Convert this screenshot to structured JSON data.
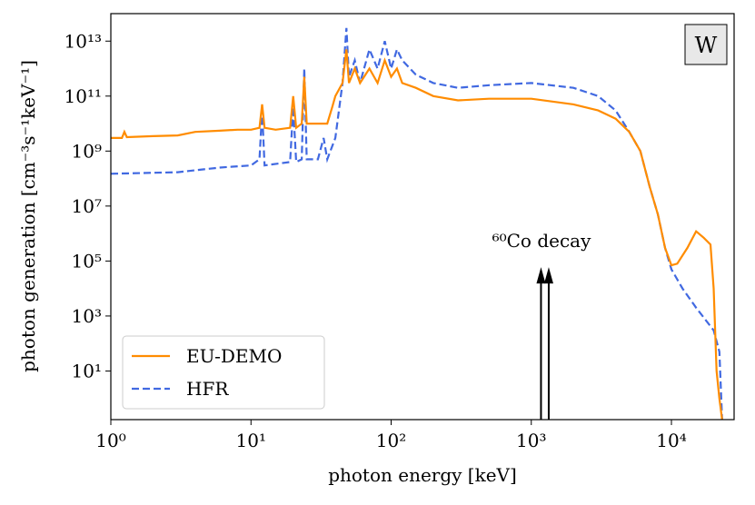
{
  "chart_data": {
    "type": "line",
    "xlabel": "photon energy [keV]",
    "ylabel": "photon generation [cm⁻³s⁻¹keV⁻¹]",
    "xscale": "log",
    "yscale": "log",
    "xlim": [
      1,
      28000
    ],
    "ylim": [
      0.17,
      100000000000000.0
    ],
    "xticks": [
      {
        "value": 1,
        "label": "10⁰"
      },
      {
        "value": 10,
        "label": "10¹"
      },
      {
        "value": 100,
        "label": "10²"
      },
      {
        "value": 1000,
        "label": "10³"
      },
      {
        "value": 10000,
        "label": "10⁴"
      }
    ],
    "yticks": [
      {
        "value": 10,
        "label": "10¹"
      },
      {
        "value": 1000,
        "label": "10³"
      },
      {
        "value": 100000,
        "label": "10⁵"
      },
      {
        "value": 10000000,
        "label": "10⁷"
      },
      {
        "value": 1000000000,
        "label": "10⁹"
      },
      {
        "value": 100000000000,
        "label": "10¹¹"
      },
      {
        "value": 10000000000000,
        "label": "10¹³"
      }
    ],
    "legend": "lower left",
    "panel_label": "W",
    "annotation": {
      "text": "⁶⁰Co decay",
      "arrows_x": [
        1173,
        1332
      ],
      "arrow_top": 60000
    },
    "series": [
      {
        "name": "EU-DEMO",
        "color": "#ff8c00",
        "dash": "solid",
        "x": [
          1,
          1.2,
          1.25,
          1.3,
          2,
          3,
          4,
          6,
          8,
          10,
          11.5,
          12,
          12.5,
          15,
          19,
          20,
          21,
          23,
          24,
          25,
          30,
          35,
          38,
          40,
          45,
          48,
          50,
          55,
          60,
          70,
          80,
          90,
          100,
          110,
          120,
          150,
          200,
          300,
          500,
          1000,
          2000,
          3000,
          4000,
          5000,
          6000,
          7000,
          8000,
          9000,
          10000,
          11000,
          13000,
          15000,
          17000,
          19000,
          20000,
          21000,
          22000,
          23000
        ],
        "values": [
          3000000000.0,
          3000000000.0,
          5000000000.0,
          3200000000.0,
          3500000000.0,
          3700000000.0,
          5000000000.0,
          5500000000.0,
          6000000000.0,
          6000000000.0,
          7000000000.0,
          50000000000.0,
          7000000000.0,
          6000000000.0,
          7000000000.0,
          100000000000.0,
          7000000000.0,
          10000000000.0,
          500000000000.0,
          10000000000.0,
          10000000000.0,
          10000000000.0,
          40000000000.0,
          100000000000.0,
          300000000000.0,
          5000000000000.0,
          300000000000.0,
          1000000000000.0,
          300000000000.0,
          1000000000000.0,
          300000000000.0,
          2000000000000.0,
          500000000000.0,
          1000000000000.0,
          300000000000.0,
          200000000000.0,
          100000000000.0,
          70000000000.0,
          80000000000.0,
          80000000000.0,
          50000000000.0,
          30000000000.0,
          15000000000.0,
          5000000000.0,
          1000000000.0,
          50000000.0,
          5000000.0,
          300000.0,
          70000.0,
          80000.0,
          300000.0,
          1200000.0,
          700000.0,
          400000.0,
          10000.0,
          10,
          1,
          0.17
        ]
      },
      {
        "name": "HFR",
        "color": "#4169e1",
        "dash": "dashed",
        "x": [
          1,
          3,
          6,
          10,
          11.5,
          12,
          12.5,
          19,
          20,
          21,
          23,
          24,
          25,
          30,
          33,
          35,
          40,
          45,
          48,
          50,
          55,
          60,
          70,
          80,
          90,
          100,
          110,
          120,
          150,
          200,
          300,
          500,
          1000,
          2000,
          3000,
          4000,
          5000,
          6000,
          7000,
          8000,
          9000,
          10000,
          12000,
          15000,
          20000,
          22000,
          23000
        ],
        "values": [
          150000000.0,
          170000000.0,
          250000000.0,
          300000000.0,
          500000000.0,
          30000000000.0,
          300000000.0,
          400000000.0,
          40000000000.0,
          400000000.0,
          500000000.0,
          1000000000000.0,
          500000000.0,
          500000000.0,
          3000000000.0,
          500000000.0,
          3000000000.0,
          300000000000.0,
          30000000000000.0,
          500000000000.0,
          2000000000000.0,
          300000000000.0,
          5000000000000.0,
          1000000000000.0,
          10000000000000.0,
          1000000000000.0,
          5000000000000.0,
          2000000000000.0,
          600000000000.0,
          300000000000.0,
          200000000000.0,
          250000000000.0,
          300000000000.0,
          200000000000.0,
          100000000000.0,
          30000000000.0,
          5000000000.0,
          1000000000.0,
          50000000.0,
          5000000.0,
          300000.0,
          50000.0,
          10000.0,
          2000.0,
          300,
          50,
          0.17
        ]
      }
    ]
  }
}
